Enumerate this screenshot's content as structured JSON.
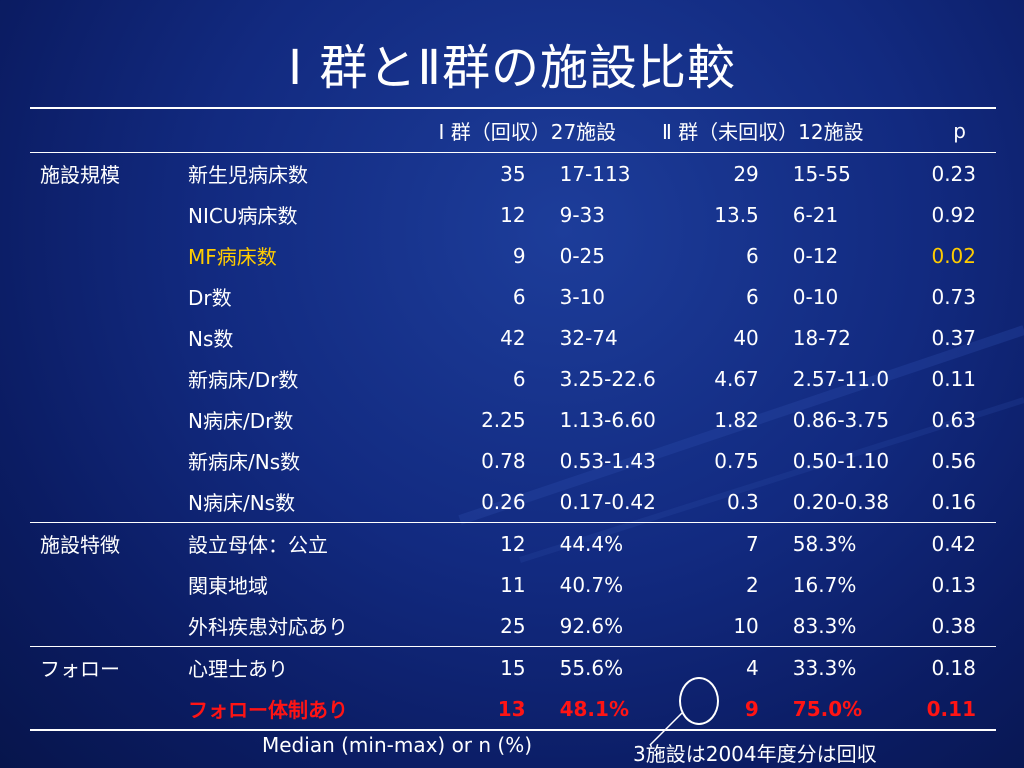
{
  "title": "Ⅰ 群とⅡ群の施設比較",
  "header": {
    "group1": "Ⅰ 群（回収）27施設",
    "group2": "Ⅱ 群（未回収）12施設",
    "p": "p"
  },
  "rows": [
    {
      "group": "施設規模",
      "item": "新生児病床数",
      "n1": "35",
      "r1": "17-113",
      "n2": "29",
      "r2": "15-55",
      "p": "0.23"
    },
    {
      "group": "",
      "item": "NICU病床数",
      "n1": "12",
      "r1": "9-33",
      "n2": "13.5",
      "r2": "6-21",
      "p": "0.92"
    },
    {
      "group": "",
      "item": "MF病床数",
      "n1": "9",
      "r1": "0-25",
      "n2": "6",
      "r2": "0-12",
      "p": "0.02"
    },
    {
      "group": "",
      "item": "Dr数",
      "n1": "6",
      "r1": "3-10",
      "n2": "6",
      "r2": "0-10",
      "p": "0.73"
    },
    {
      "group": "",
      "item": "Ns数",
      "n1": "42",
      "r1": "32-74",
      "n2": "40",
      "r2": "18-72",
      "p": "0.37"
    },
    {
      "group": "",
      "item": "新病床/Dr数",
      "n1": "6",
      "r1": "3.25-22.6",
      "n2": "4.67",
      "r2": "2.57-11.0",
      "p": "0.11"
    },
    {
      "group": "",
      "item": "N病床/Dr数",
      "n1": "2.25",
      "r1": "1.13-6.60",
      "n2": "1.82",
      "r2": "0.86-3.75",
      "p": "0.63"
    },
    {
      "group": "",
      "item": "新病床/Ns数",
      "n1": "0.78",
      "r1": "0.53-1.43",
      "n2": "0.75",
      "r2": "0.50-1.10",
      "p": "0.56"
    },
    {
      "group": "",
      "item": "N病床/Ns数",
      "n1": "0.26",
      "r1": "0.17-0.42",
      "n2": "0.3",
      "r2": "0.20-0.38",
      "p": "0.16"
    },
    {
      "group": "施設特徴",
      "item": "設立母体：公立",
      "n1": "12",
      "r1": "44.4%",
      "n2": "7",
      "r2": "58.3%",
      "p": "0.42"
    },
    {
      "group": "",
      "item": "関東地域",
      "n1": "11",
      "r1": "40.7%",
      "n2": "2",
      "r2": "16.7%",
      "p": "0.13"
    },
    {
      "group": "",
      "item": "外科疾患対応あり",
      "n1": "25",
      "r1": "92.6%",
      "n2": "10",
      "r2": "83.3%",
      "p": "0.38"
    },
    {
      "group": "フォロー",
      "item": "心理士あり",
      "n1": "15",
      "r1": "55.6%",
      "n2": "4",
      "r2": "33.3%",
      "p": "0.18"
    },
    {
      "group": "",
      "item": "フォロー体制あり",
      "n1": "13",
      "r1": "48.1%",
      "n2": "9",
      "r2": "75.0%",
      "p": "0.11"
    }
  ],
  "footnote": "Median (min-max) or n (%)",
  "callout": "3施設は2004年度分は回収",
  "colors": {
    "background": "#122a80",
    "highlight_yellow": "#ffcc00",
    "highlight_red": "#ff1414"
  }
}
